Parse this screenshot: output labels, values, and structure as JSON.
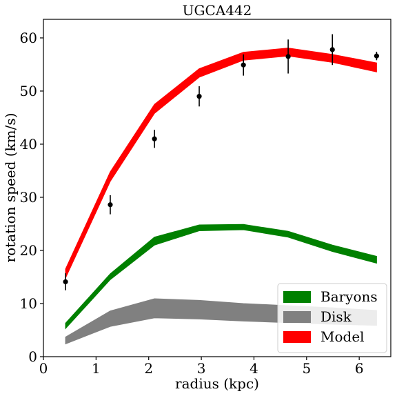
{
  "chart_data": {
    "type": "area",
    "title": "UGCA442",
    "xlabel": "radius (kpc)",
    "ylabel": "rotation speed (km/s)",
    "xlim": [
      0,
      6.6
    ],
    "ylim": [
      0,
      63.5
    ],
    "xticks": [
      0,
      1,
      2,
      3,
      4,
      5,
      6
    ],
    "yticks": [
      0,
      10,
      20,
      30,
      40,
      50,
      60
    ],
    "grid": false,
    "legend_position": "bottom-right",
    "x": [
      0.42,
      1.27,
      2.11,
      2.96,
      3.8,
      4.65,
      5.49,
      6.33
    ],
    "series": [
      {
        "name": "Baryons",
        "color": "#008000",
        "lower": [
          5.3,
          14.5,
          21.0,
          23.7,
          23.9,
          22.5,
          19.8,
          17.6
        ],
        "upper": [
          6.3,
          15.6,
          22.5,
          24.8,
          24.9,
          23.6,
          21.0,
          18.9
        ]
      },
      {
        "name": "Disk",
        "color": "#808080",
        "lower": [
          2.4,
          5.7,
          7.3,
          7.1,
          6.7,
          6.4,
          6.1,
          5.9
        ],
        "upper": [
          3.7,
          8.6,
          10.9,
          10.6,
          10.0,
          9.6,
          9.2,
          8.7
        ]
      },
      {
        "name": "Model",
        "color": "#ff0000",
        "lower": [
          14.8,
          33.0,
          45.8,
          52.6,
          55.8,
          56.6,
          55.4,
          53.6
        ],
        "upper": [
          16.5,
          34.8,
          47.5,
          54.2,
          57.3,
          58.1,
          56.9,
          55.3
        ]
      }
    ],
    "observed": {
      "x": [
        0.42,
        1.27,
        2.11,
        2.96,
        3.8,
        4.65,
        5.49,
        6.33
      ],
      "y": [
        14.1,
        28.6,
        41.0,
        49.0,
        54.9,
        56.5,
        57.8,
        56.6
      ],
      "err": [
        1.6,
        1.8,
        1.7,
        1.9,
        2.0,
        3.2,
        2.9,
        0.8
      ],
      "color": "#000000"
    }
  }
}
